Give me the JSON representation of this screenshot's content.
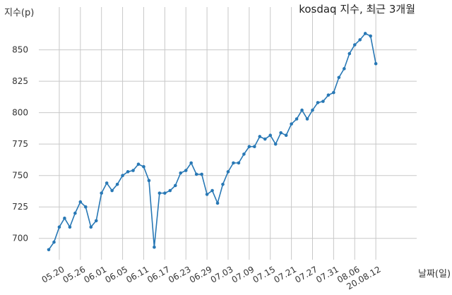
{
  "chart_data": {
    "type": "line",
    "title": "kosdaq 지수, 최근 3개월",
    "ylabel": "지수(p)",
    "xlabel": "날짜(일)",
    "ylim": [
      683,
      870
    ],
    "yticks": [
      700,
      725,
      750,
      775,
      800,
      825,
      850
    ],
    "grid": true,
    "legend": "none",
    "color": "#2878b5",
    "xtick_labels": [
      "05.20",
      "05.26",
      "06.01",
      "06.05",
      "06.11",
      "06.17",
      "06.23",
      "06.29",
      "07.03",
      "07.09",
      "07.15",
      "07.21",
      "07.27",
      "07.31",
      "08.06",
      "20.08.12"
    ],
    "xtick_index": [
      2,
      6,
      10,
      14,
      18,
      22,
      26,
      30,
      34,
      38,
      42,
      46,
      50,
      54,
      58,
      62
    ],
    "series": [
      {
        "values": [
          691,
          697,
          709,
          716,
          709,
          720,
          729,
          725,
          709,
          714,
          736,
          744,
          738,
          743,
          750,
          753,
          754,
          759,
          757,
          746,
          693,
          736,
          736,
          738,
          742,
          752,
          754,
          760,
          751,
          751,
          735,
          738,
          728,
          743,
          753,
          760,
          760,
          767,
          773,
          773,
          781,
          779,
          782,
          775,
          784,
          782,
          791,
          795,
          802,
          795,
          802,
          808,
          809,
          814,
          816,
          828,
          835,
          847,
          854,
          858,
          863,
          861,
          839
        ]
      }
    ]
  }
}
